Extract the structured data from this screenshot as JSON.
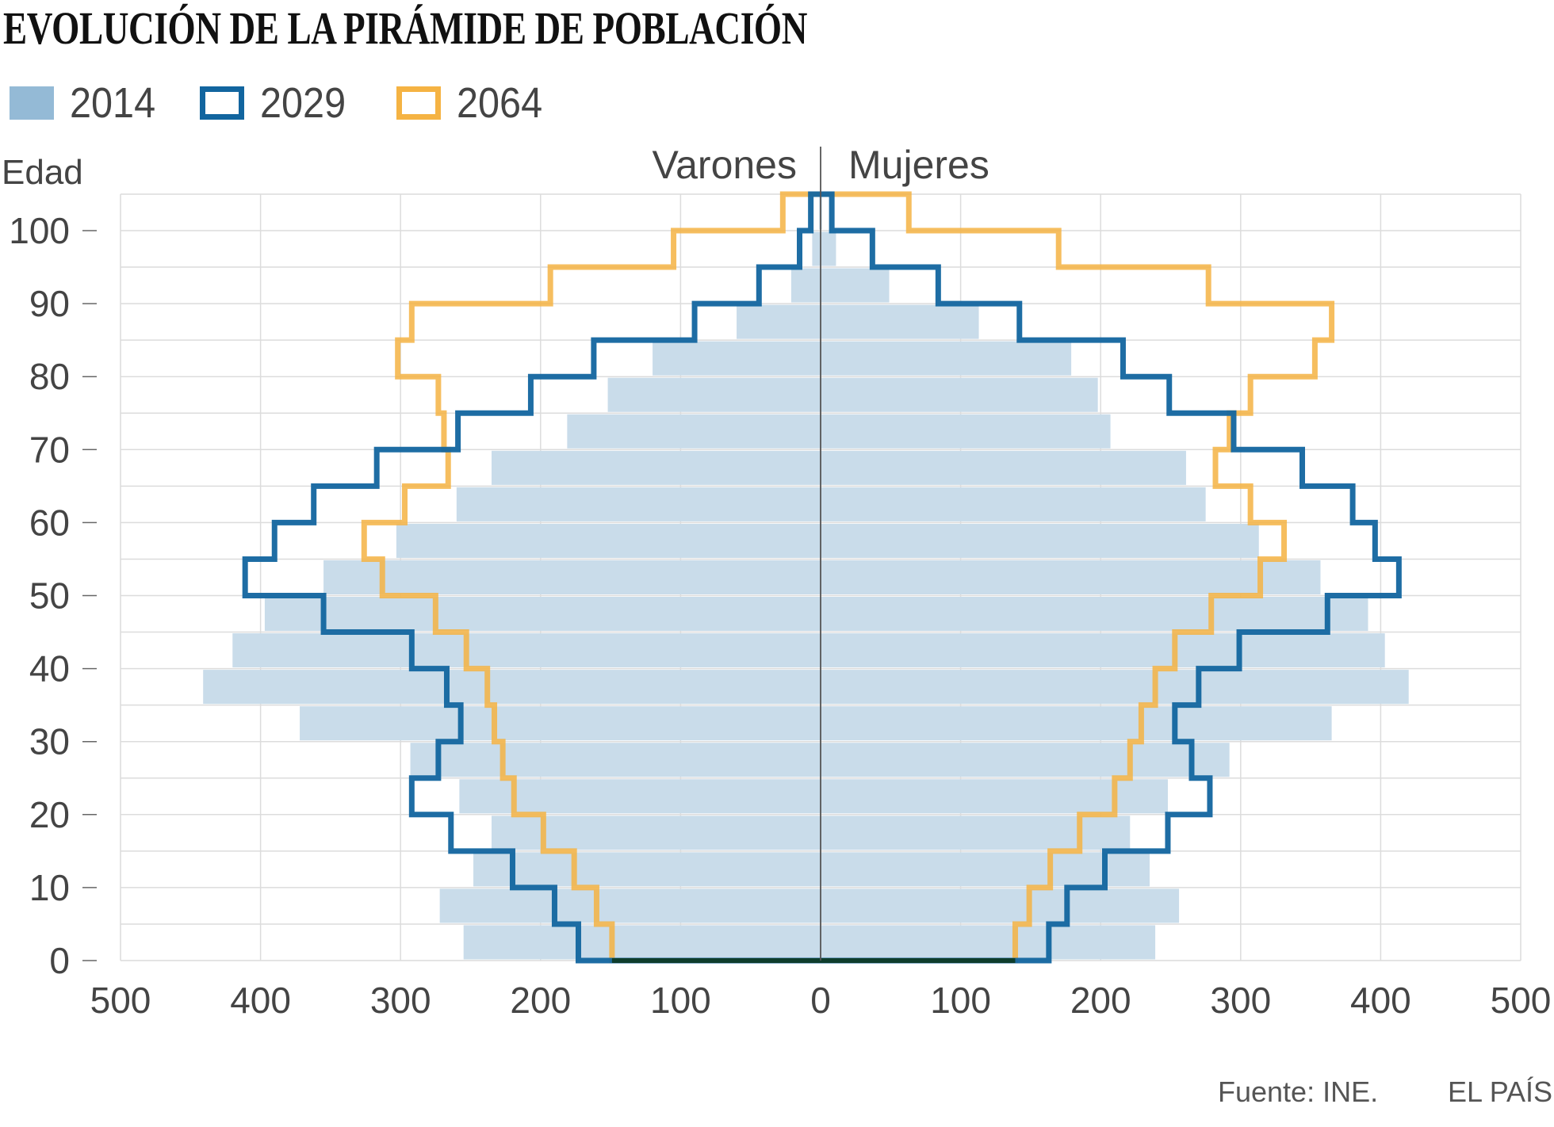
{
  "chart_data": {
    "type": "bar",
    "subtype": "population-pyramid",
    "title": "EVOLUCIÓN DE LA PIRÁMIDE DE POBLACIÓN",
    "ylabel": "Edad",
    "left_label": "Varones",
    "right_label": "Mujeres",
    "age_groups_start": [
      0,
      5,
      10,
      15,
      20,
      25,
      30,
      35,
      40,
      45,
      50,
      55,
      60,
      65,
      70,
      75,
      80,
      85,
      90,
      95,
      100
    ],
    "xlim": [
      -500,
      500
    ],
    "ylim": [
      0,
      105
    ],
    "x_ticks": [
      "500",
      "400",
      "300",
      "200",
      "100",
      "0",
      "100",
      "200",
      "300",
      "400",
      "500"
    ],
    "y_ticks": [
      "0",
      "10",
      "20",
      "30",
      "40",
      "50",
      "60",
      "70",
      "80",
      "90",
      "100"
    ],
    "grid": true,
    "legend_position": "top-left",
    "series": [
      {
        "name": "2014",
        "style": "filled",
        "color": "#c9dcea",
        "legend_color": "#94bad6",
        "varones": [
          255,
          272,
          248,
          235,
          258,
          293,
          372,
          441,
          420,
          397,
          355,
          303,
          260,
          235,
          181,
          152,
          120,
          60,
          21,
          6,
          1
        ],
        "mujeres": [
          239,
          256,
          235,
          221,
          248,
          292,
          365,
          420,
          403,
          391,
          357,
          313,
          275,
          261,
          207,
          198,
          179,
          113,
          49,
          11,
          1
        ]
      },
      {
        "name": "2029",
        "style": "outline",
        "color": "#12659f",
        "varones": [
          173,
          190,
          220,
          264,
          292,
          273,
          257,
          267,
          292,
          355,
          411,
          390,
          362,
          317,
          259,
          207,
          162,
          90,
          44,
          15,
          7
        ],
        "mujeres": [
          163,
          176,
          203,
          248,
          278,
          265,
          253,
          270,
          299,
          362,
          413,
          396,
          380,
          344,
          295,
          249,
          216,
          142,
          84,
          37,
          8
        ]
      },
      {
        "name": "2064",
        "style": "outline",
        "color": "#f5b343",
        "varones": [
          149,
          160,
          176,
          198,
          219,
          227,
          233,
          238,
          253,
          275,
          313,
          326,
          297,
          266,
          269,
          273,
          302,
          292,
          193,
          105,
          27
        ],
        "mujeres": [
          139,
          149,
          164,
          185,
          210,
          221,
          229,
          239,
          253,
          279,
          314,
          331,
          307,
          282,
          292,
          307,
          353,
          365,
          277,
          170,
          63
        ]
      }
    ]
  },
  "footer": {
    "source": "Fuente: INE.",
    "brand": "EL PAÍS"
  }
}
